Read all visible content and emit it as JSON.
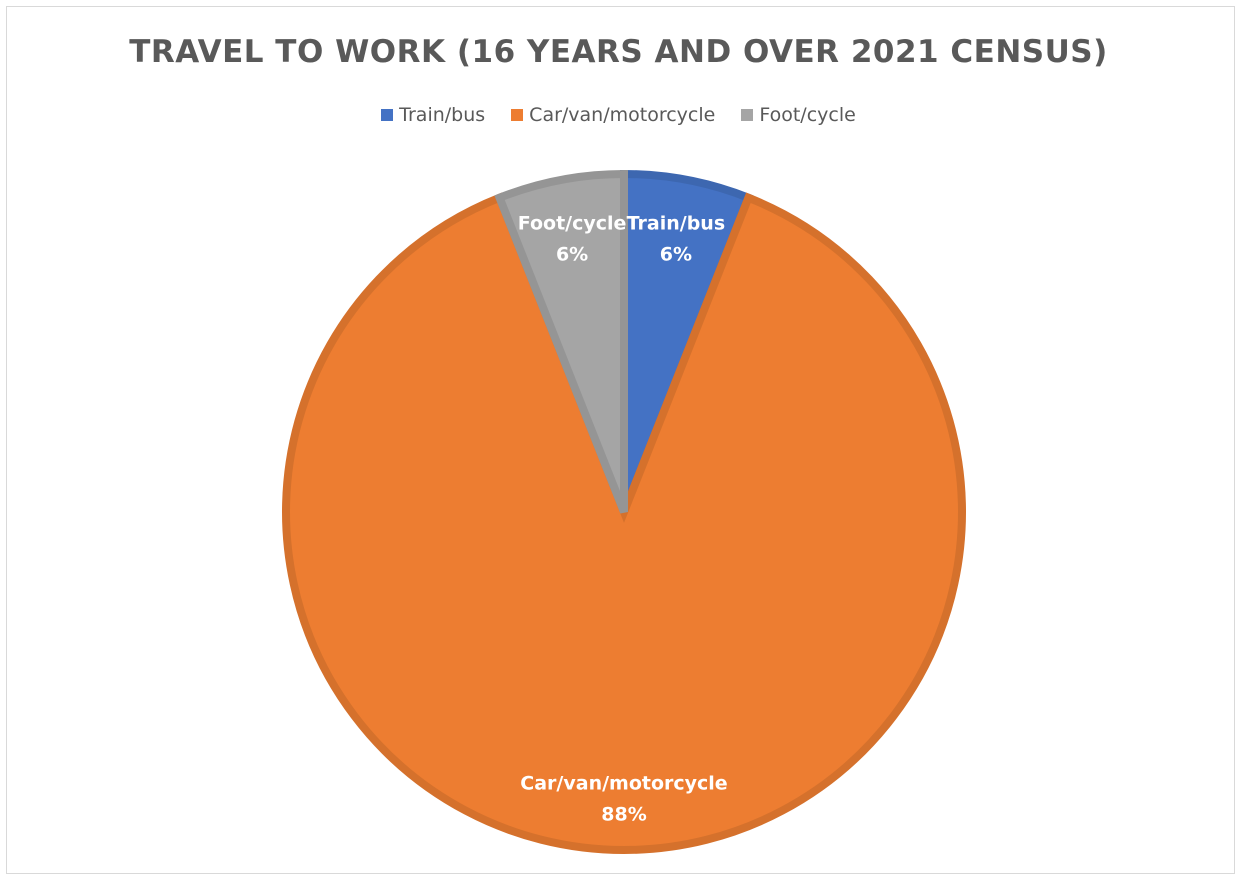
{
  "chart_data": {
    "type": "pie",
    "title": "TRAVEL TO WORK (16 YEARS AND OVER 2021 CENSUS)",
    "legend_position": "top",
    "slices": [
      {
        "name": "Train/bus",
        "value": 6,
        "label": "6%",
        "color": "#4472C4"
      },
      {
        "name": "Car/van/motorcycle",
        "value": 88,
        "label": "88%",
        "color": "#ED7D31"
      },
      {
        "name": "Foot/cycle",
        "value": 6,
        "label": "6%",
        "color": "#A5A5A5"
      }
    ]
  }
}
